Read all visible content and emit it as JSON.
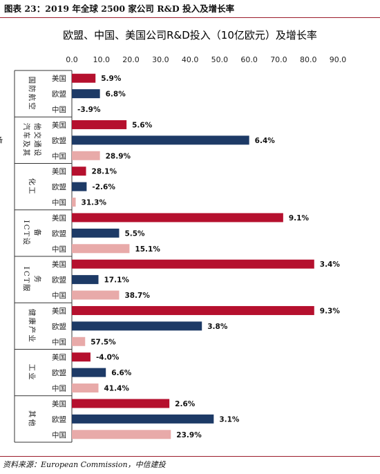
{
  "header": {
    "title": "图表 23：2019 年全球 2500 家公司 R&D 投入及增长率"
  },
  "footer": {
    "source": "资料来源：European Commission，中信建投"
  },
  "chart_data": {
    "type": "bar",
    "orientation": "horizontal",
    "title": "欧盟、中国、美国公司R&D投入（10亿欧元）及增长率",
    "xlim": [
      0,
      90
    ],
    "xticks": [
      "0.0",
      "10.0",
      "20.0",
      "30.0",
      "40.0",
      "50.0",
      "60.0",
      "70.0",
      "80.0",
      "90.0"
    ],
    "legend": "none",
    "colors": {
      "美国": "#b5102e",
      "欧盟": "#1d3a66",
      "中国": "#e8aaa9"
    },
    "groups": [
      {
        "name": "国防航空",
        "bars": [
          {
            "region": "美国",
            "value": 8.0,
            "label": "5.9%"
          },
          {
            "region": "欧盟",
            "value": 9.5,
            "label": "6.8%"
          },
          {
            "region": "中国",
            "value": 0.0,
            "label": "-3.9%"
          }
        ]
      },
      {
        "name": "汽车及其他交通设备",
        "bars": [
          {
            "region": "美国",
            "value": 18.5,
            "label": "5.6%"
          },
          {
            "region": "欧盟",
            "value": 60.0,
            "label": "6.4%"
          },
          {
            "region": "中国",
            "value": 9.5,
            "label": "28.9%"
          }
        ]
      },
      {
        "name": "化工",
        "bars": [
          {
            "region": "美国",
            "value": 4.8,
            "label": "28.1%"
          },
          {
            "region": "欧盟",
            "value": 5.0,
            "label": "-2.6%"
          },
          {
            "region": "中国",
            "value": 1.3,
            "label": "31.3%"
          }
        ]
      },
      {
        "name": "ICT设备",
        "bars": [
          {
            "region": "美国",
            "value": 71.5,
            "label": "9.1%"
          },
          {
            "region": "欧盟",
            "value": 16.0,
            "label": "5.5%"
          },
          {
            "region": "中国",
            "value": 19.5,
            "label": "15.1%"
          }
        ]
      },
      {
        "name": "ICT服务",
        "bars": [
          {
            "region": "美国",
            "value": 82.0,
            "label": "3.4%"
          },
          {
            "region": "欧盟",
            "value": 9.0,
            "label": "17.1%"
          },
          {
            "region": "中国",
            "value": 16.0,
            "label": "38.7%"
          }
        ]
      },
      {
        "name": "健康产业",
        "bars": [
          {
            "region": "美国",
            "value": 82.0,
            "label": "9.3%"
          },
          {
            "region": "欧盟",
            "value": 44.0,
            "label": "3.8%"
          },
          {
            "region": "中国",
            "value": 4.5,
            "label": "57.5%"
          }
        ]
      },
      {
        "name": "工业",
        "bars": [
          {
            "region": "美国",
            "value": 6.3,
            "label": "-4.0%"
          },
          {
            "region": "欧盟",
            "value": 11.5,
            "label": "6.6%"
          },
          {
            "region": "中国",
            "value": 9.0,
            "label": "41.4%"
          }
        ]
      },
      {
        "name": "其他",
        "bars": [
          {
            "region": "美国",
            "value": 33.0,
            "label": "2.6%"
          },
          {
            "region": "欧盟",
            "value": 48.0,
            "label": "3.1%"
          },
          {
            "region": "中国",
            "value": 33.5,
            "label": "23.9%"
          }
        ]
      }
    ]
  }
}
